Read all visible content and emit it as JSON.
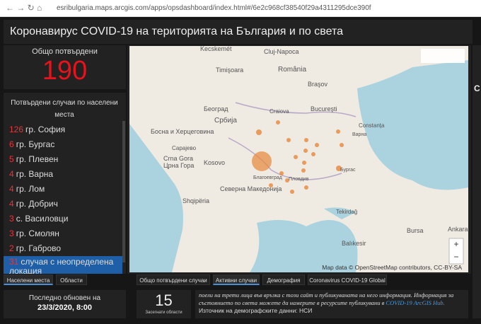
{
  "browser": {
    "url": "esribulgaria.maps.arcgis.com/apps/opsdashboard/index.html#/6e2c968cf38540f29a4311295dce390f"
  },
  "header": {
    "title": "Коронавирус COVID-19 на територията на България и по света"
  },
  "total": {
    "label": "Общо потвърдени",
    "value": 190
  },
  "list": {
    "title": "Потвърдени случаи по населени места",
    "items": [
      {
        "count": 126,
        "name": "гр. София"
      },
      {
        "count": 6,
        "name": "гр. Бургас"
      },
      {
        "count": 5,
        "name": "гр. Плевен"
      },
      {
        "count": 4,
        "name": "гр. Варна"
      },
      {
        "count": 4,
        "name": "гр. Лом"
      },
      {
        "count": 4,
        "name": "гр. Добрич"
      },
      {
        "count": 3,
        "name": "с. Василовци"
      },
      {
        "count": 3,
        "name": "гр. Смолян"
      },
      {
        "count": 2,
        "name": "гр. Габрово"
      },
      {
        "count": 31,
        "name": "случая с неопределена локация"
      }
    ]
  },
  "left_tabs": [
    "Населени места",
    "Области"
  ],
  "updated": {
    "label": "Последно обновен на",
    "value": "23/3/2020, 8:00"
  },
  "map": {
    "labels": [
      "Kecskemét",
      "Cluj-Napoca",
      "Timişoara",
      "România",
      "Braşov",
      "Craiova",
      "Bucureşti",
      "Constanța",
      "Београд",
      "Србија",
      "Босна и Херцеговина",
      "Сарајево",
      "Crna Gora",
      "Црна Гора",
      "Kosovo",
      "Северна Македонија",
      "Shqipëria",
      "Благоевград",
      "Пловдив",
      "Бургас",
      "Варна",
      "Tekirdağ",
      "Bursa",
      "Balıkesir",
      "Ankara"
    ],
    "attribution": "Map data © OpenStreetMap contributors, CC-BY-SA"
  },
  "map_tabs": [
    "Общо потвърдени случаи",
    "Активни случаи",
    "Демография",
    "Coronavirus COVID-19 Global"
  ],
  "regions": {
    "value": 15,
    "label": "Засегнати области"
  },
  "info": {
    "text": "поели на трети лица във връзка с този сайт и публикуваната на него информация. Информация за състоянието по света можете да намерите в ресурсите публикувани в",
    "link": "COVID-19 ArcGIS Hub.",
    "source": "Източник на демографските данни: НСИ"
  },
  "side": {
    "letter": "C"
  }
}
